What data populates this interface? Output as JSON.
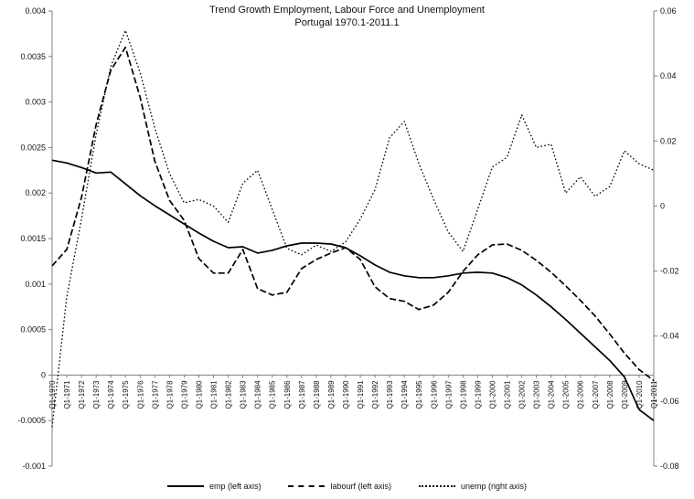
{
  "chart_data": {
    "type": "line",
    "title": "Trend Growth Employment, Labour Force and Unemployment",
    "subtitle": "Portugal 1970.1-2011.1",
    "grid": false,
    "legend_position": "bottom",
    "categories": [
      "Q1-1970",
      "Q1-1971",
      "Q1-1972",
      "Q1-1973",
      "Q1-1974",
      "Q1-1975",
      "Q1-1976",
      "Q1-1977",
      "Q1-1978",
      "Q1-1979",
      "Q1-1980",
      "Q1-1981",
      "Q1-1982",
      "Q1-1983",
      "Q1-1984",
      "Q1-1985",
      "Q1-1986",
      "Q1-1987",
      "Q1-1988",
      "Q1-1989",
      "Q1-1990",
      "Q1-1991",
      "Q1-1992",
      "Q1-1993",
      "Q1-1994",
      "Q1-1995",
      "Q1-1996",
      "Q1-1997",
      "Q1-1998",
      "Q1-1999",
      "Q1-2000",
      "Q1-2001",
      "Q1-2002",
      "Q1-2003",
      "Q1-2004",
      "Q1-2005",
      "Q1-2006",
      "Q1-2007",
      "Q1-2008",
      "Q1-2009",
      "Q1-2010",
      "Q1-2011"
    ],
    "left_axis": {
      "min": -0.001,
      "max": 0.004,
      "ticks": [
        "0.004",
        "0.0035",
        "0.003",
        "0.0025",
        "0.002",
        "0.0015",
        "0.001",
        "0.0005",
        "0",
        "-0.0005",
        "-0.001"
      ]
    },
    "right_axis": {
      "min": -0.08,
      "max": 0.06,
      "ticks": [
        "0.06",
        "0.04",
        "0.02",
        "0",
        "-0.02",
        "-0.04",
        "-0.06",
        "-0.08"
      ]
    },
    "series": [
      {
        "name": "emp (left axis)",
        "axis": "left",
        "style": "solid",
        "color": "#000000",
        "values": [
          0.00236,
          0.00233,
          0.00228,
          0.00222,
          0.00223,
          0.0021,
          0.00197,
          0.00186,
          0.00176,
          0.00166,
          0.00156,
          0.00147,
          0.0014,
          0.00141,
          0.00134,
          0.00137,
          0.00142,
          0.00145,
          0.00145,
          0.00144,
          0.0014,
          0.00131,
          0.00121,
          0.00113,
          0.00109,
          0.00107,
          0.00107,
          0.00109,
          0.00112,
          0.00113,
          0.00112,
          0.00107,
          0.00099,
          0.00088,
          0.00075,
          0.00061,
          0.00046,
          0.00031,
          0.00016,
          -2e-05,
          -0.00038,
          -0.0005
        ]
      },
      {
        "name": "labourf (left axis)",
        "axis": "left",
        "style": "dashed",
        "color": "#000000",
        "values": [
          0.0012,
          0.00138,
          0.00195,
          0.00275,
          0.00335,
          0.0036,
          0.00305,
          0.00235,
          0.00192,
          0.0017,
          0.00128,
          0.00112,
          0.00112,
          0.00138,
          0.00095,
          0.00088,
          0.00091,
          0.00117,
          0.00127,
          0.00134,
          0.0014,
          0.00127,
          0.00097,
          0.00084,
          0.00081,
          0.00072,
          0.00077,
          0.00091,
          0.00114,
          0.00132,
          0.00143,
          0.00144,
          0.00137,
          0.00126,
          0.00113,
          0.00098,
          0.00082,
          0.00065,
          0.00045,
          0.00024,
          6e-05,
          -6e-05
        ]
      },
      {
        "name": "unemp (right axis)",
        "axis": "right",
        "style": "dotted",
        "color": "#000000",
        "values": [
          -0.068,
          -0.028,
          -0.004,
          0.022,
          0.043,
          0.054,
          0.041,
          0.024,
          0.01,
          0.001,
          0.002,
          0.0,
          -0.005,
          0.007,
          0.011,
          -0.001,
          -0.013,
          -0.015,
          -0.012,
          -0.014,
          -0.011,
          -0.004,
          0.005,
          0.021,
          0.026,
          0.013,
          0.002,
          -0.008,
          -0.014,
          -0.001,
          0.012,
          0.015,
          0.028,
          0.018,
          0.019,
          0.004,
          0.009,
          0.003,
          0.006,
          0.017,
          0.013,
          0.011
        ]
      }
    ],
    "colors": {
      "axis": "#7f7f7f",
      "line": "#000000",
      "background": "#ffffff"
    }
  },
  "legend": {
    "items": [
      "emp (left axis)",
      "labourf (left axis)",
      "unemp (right axis)"
    ]
  }
}
